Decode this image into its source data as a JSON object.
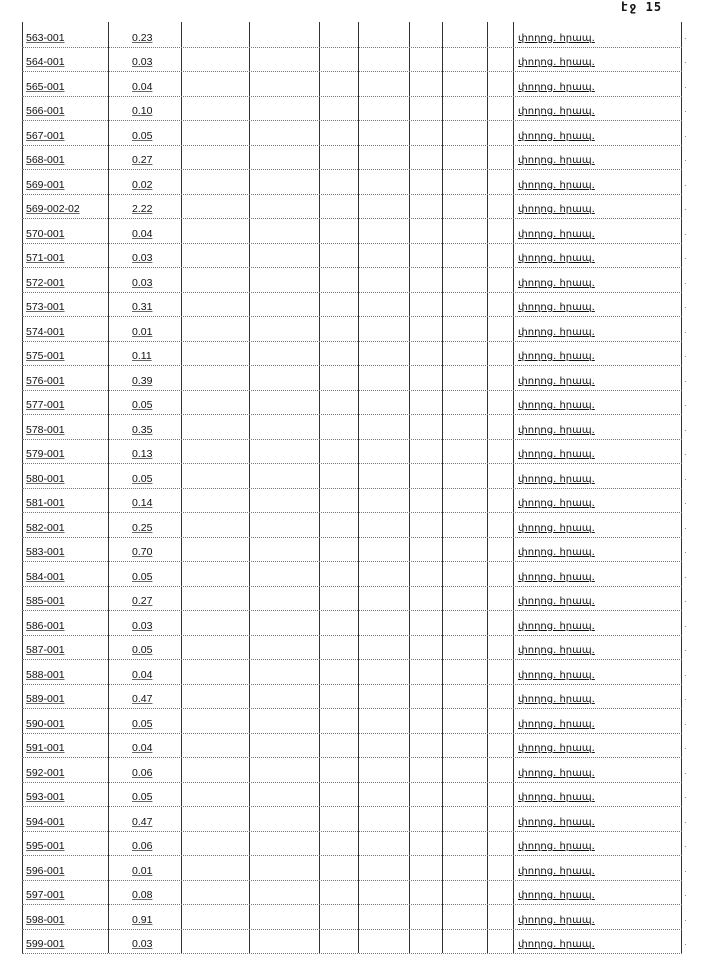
{
  "page_label": "էջ 15",
  "rows": [
    {
      "id": "563-001",
      "area": "0.23",
      "type": "փողոց. հրապ."
    },
    {
      "id": "564-001",
      "area": "0.03",
      "type": "փողոց. հրապ."
    },
    {
      "id": "565-001",
      "area": "0.04",
      "type": "փողոց. հրապ."
    },
    {
      "id": "566-001",
      "area": "0.10",
      "type": "փողոց. հրապ."
    },
    {
      "id": "567-001",
      "area": "0.05",
      "type": "փողոց. հրապ."
    },
    {
      "id": "568-001",
      "area": "0.27",
      "type": "փողոց. հրապ."
    },
    {
      "id": "569-001",
      "area": "0.02",
      "type": "փողոց. հրապ."
    },
    {
      "id": "569-002-02",
      "area": "2.22",
      "type": "փողոց. հրապ."
    },
    {
      "id": "570-001",
      "area": "0.04",
      "type": "փողոց. հրապ."
    },
    {
      "id": "571-001",
      "area": "0.03",
      "type": "փողոց. հրապ."
    },
    {
      "id": "572-001",
      "area": "0.03",
      "type": "փողոց. հրապ."
    },
    {
      "id": "573-001",
      "area": "0.31",
      "type": "փողոց. հրապ."
    },
    {
      "id": "574-001",
      "area": "0.01",
      "type": "փողոց. հրապ."
    },
    {
      "id": "575-001",
      "area": "0.11",
      "type": "փողոց. հրապ."
    },
    {
      "id": "576-001",
      "area": "0.39",
      "type": "փողոց. հրապ."
    },
    {
      "id": "577-001",
      "area": "0.05",
      "type": "փողոց. հրապ."
    },
    {
      "id": "578-001",
      "area": "0.35",
      "type": "փողոց. հրապ."
    },
    {
      "id": "579-001",
      "area": "0.13",
      "type": "փողոց. հրապ."
    },
    {
      "id": "580-001",
      "area": "0.05",
      "type": "փողոց. հրապ."
    },
    {
      "id": "581-001",
      "area": "0.14",
      "type": "փողոց. հրապ."
    },
    {
      "id": "582-001",
      "area": "0.25",
      "type": "փողոց. հրապ."
    },
    {
      "id": "583-001",
      "area": "0.70",
      "type": "փողոց. հրապ."
    },
    {
      "id": "584-001",
      "area": "0.05",
      "type": "փողոց. հրապ."
    },
    {
      "id": "585-001",
      "area": "0.27",
      "type": "փողոց. հրապ."
    },
    {
      "id": "586-001",
      "area": "0.03",
      "type": "փողոց. հրապ."
    },
    {
      "id": "587-001",
      "area": "0.05",
      "type": "փողոց. հրապ."
    },
    {
      "id": "588-001",
      "area": "0.04",
      "type": "փողոց. հրապ."
    },
    {
      "id": "589-001",
      "area": "0.47",
      "type": "փողոց. հրապ."
    },
    {
      "id": "590-001",
      "area": "0.05",
      "type": "փողոց. հրապ."
    },
    {
      "id": "591-001",
      "area": "0.04",
      "type": "փողոց. հրապ."
    },
    {
      "id": "592-001",
      "area": "0.06",
      "type": "փողոց. հրապ."
    },
    {
      "id": "593-001",
      "area": "0.05",
      "type": "փողոց. հրապ."
    },
    {
      "id": "594-001",
      "area": "0.47",
      "type": "փողոց. հրապ."
    },
    {
      "id": "595-001",
      "area": "0.06",
      "type": "փողոց. հրապ."
    },
    {
      "id": "596-001",
      "area": "0.01",
      "type": "փողոց. հրապ."
    },
    {
      "id": "597-001",
      "area": "0.08",
      "type": "փողոց. հրապ."
    },
    {
      "id": "598-001",
      "area": "0.91",
      "type": "փողոց. հրապ."
    },
    {
      "id": "599-001",
      "area": "0.03",
      "type": "փողոց. հրապ."
    }
  ]
}
